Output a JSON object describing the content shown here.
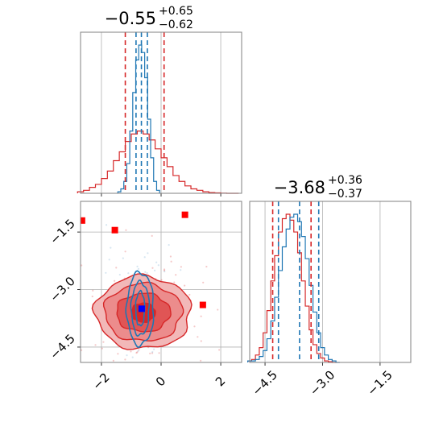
{
  "chart_data": [
    {
      "type": "histogram",
      "panel": "top-left",
      "title": {
        "main": "−0.55",
        "sup": "+0.65",
        "sub": "−0.62"
      },
      "xlim": [
        -2.7,
        2.7
      ],
      "x_ticks": [
        -2,
        0,
        2
      ],
      "tick_labels_shown": false,
      "grid": true,
      "quantile_lines": {
        "red": [
          -1.2,
          0.1
        ],
        "blue": [
          -0.84,
          -0.66,
          -0.46
        ]
      },
      "series": [
        {
          "name": "",
          "color": "#d62728",
          "x": [
            -2.7,
            -2.5,
            -2.3,
            -2.1,
            -1.9,
            -1.7,
            -1.5,
            -1.3,
            -1.1,
            -0.9,
            -0.7,
            -0.5,
            -0.3,
            -0.1,
            0.1,
            0.3,
            0.5,
            0.7,
            0.9,
            1.1,
            1.3,
            1.5,
            1.7,
            1.9,
            2.1,
            2.3,
            2.5
          ],
          "values": [
            0.01,
            0.02,
            0.04,
            0.06,
            0.1,
            0.15,
            0.22,
            0.28,
            0.35,
            0.4,
            0.42,
            0.4,
            0.36,
            0.3,
            0.24,
            0.18,
            0.12,
            0.08,
            0.05,
            0.03,
            0.02,
            0.01,
            0.005,
            0.003,
            0.001,
            0,
            0
          ]
        },
        {
          "name": "",
          "color": "#1f77b4",
          "x": [
            -1.4,
            -1.3,
            -1.2,
            -1.1,
            -1.0,
            -0.9,
            -0.8,
            -0.7,
            -0.6,
            -0.5,
            -0.4,
            -0.3,
            -0.2,
            -0.1
          ],
          "values": [
            0.01,
            0.03,
            0.08,
            0.2,
            0.42,
            0.68,
            0.9,
            1.0,
            0.95,
            0.78,
            0.5,
            0.24,
            0.08,
            0.02
          ]
        }
      ]
    },
    {
      "type": "contour",
      "panel": "bottom-left",
      "xlim": [
        -2.7,
        2.7
      ],
      "ylim": [
        -4.9,
        -0.7
      ],
      "x_ticks": [
        -2,
        0,
        2
      ],
      "x_tick_labels": [
        "−2",
        "0",
        "2"
      ],
      "y_ticks": [
        -1.5,
        -3.0,
        -4.5
      ],
      "y_tick_labels": [
        "−1.5",
        "−3.0",
        "−4.5"
      ],
      "grid": true,
      "red_contours": {
        "center": [
          -0.6,
          -3.6
        ],
        "half_widths_x": [
          0.4,
          0.9,
          1.3,
          1.6
        ],
        "half_widths_y": [
          0.25,
          0.5,
          0.75,
          0.95
        ]
      },
      "blue_contours": {
        "center": [
          -0.7,
          -3.5
        ],
        "half_widths_x": [
          0.15,
          0.3,
          0.45
        ],
        "half_widths_y": [
          0.45,
          0.7,
          0.95
        ]
      },
      "red_markers": [
        [
          -2.65,
          -1.2
        ],
        [
          -1.55,
          -1.45
        ],
        [
          0.8,
          -1.05
        ],
        [
          1.4,
          -3.4
        ]
      ],
      "blue_marker": [
        -0.65,
        -3.5
      ]
    },
    {
      "type": "histogram",
      "panel": "bottom-right",
      "title": {
        "main": "−3.68",
        "sup": "+0.36",
        "sub": "−0.37"
      },
      "xlim": [
        -4.9,
        -0.7
      ],
      "x_ticks": [
        -4.5,
        -3.0,
        -1.5
      ],
      "x_tick_labels": [
        "−4.5",
        "−3.0",
        "−1.5"
      ],
      "grid": true,
      "quantile_lines": {
        "red": [
          -4.3,
          -3.3
        ],
        "blue": [
          -4.15,
          -3.6,
          -3.1
        ]
      },
      "series": [
        {
          "name": "",
          "color": "#d62728",
          "x": [
            -4.9,
            -4.8,
            -4.7,
            -4.6,
            -4.5,
            -4.4,
            -4.3,
            -4.2,
            -4.1,
            -4.0,
            -3.9,
            -3.8,
            -3.7,
            -3.6,
            -3.5,
            -3.4,
            -3.3,
            -3.2,
            -3.1,
            -3.0,
            -2.9,
            -2.8,
            -2.7
          ],
          "values": [
            0.01,
            0.02,
            0.05,
            0.1,
            0.2,
            0.35,
            0.55,
            0.72,
            0.88,
            0.97,
            1.0,
            0.96,
            0.88,
            0.74,
            0.55,
            0.38,
            0.22,
            0.12,
            0.06,
            0.03,
            0.01,
            0.005,
            0
          ]
        },
        {
          "name": "",
          "color": "#1f77b4",
          "x": [
            -4.9,
            -4.8,
            -4.7,
            -4.6,
            -4.5,
            -4.4,
            -4.3,
            -4.2,
            -4.1,
            -4.0,
            -3.9,
            -3.8,
            -3.7,
            -3.6,
            -3.5,
            -3.4,
            -3.3,
            -3.2,
            -3.1,
            -3.0,
            -2.9,
            -2.8,
            -2.7,
            -2.6
          ],
          "values": [
            0.01,
            0.01,
            0.02,
            0.04,
            0.08,
            0.16,
            0.28,
            0.44,
            0.62,
            0.78,
            0.9,
            0.98,
            1.0,
            0.95,
            0.85,
            0.7,
            0.52,
            0.34,
            0.2,
            0.1,
            0.05,
            0.02,
            0.01,
            0
          ]
        }
      ]
    }
  ]
}
